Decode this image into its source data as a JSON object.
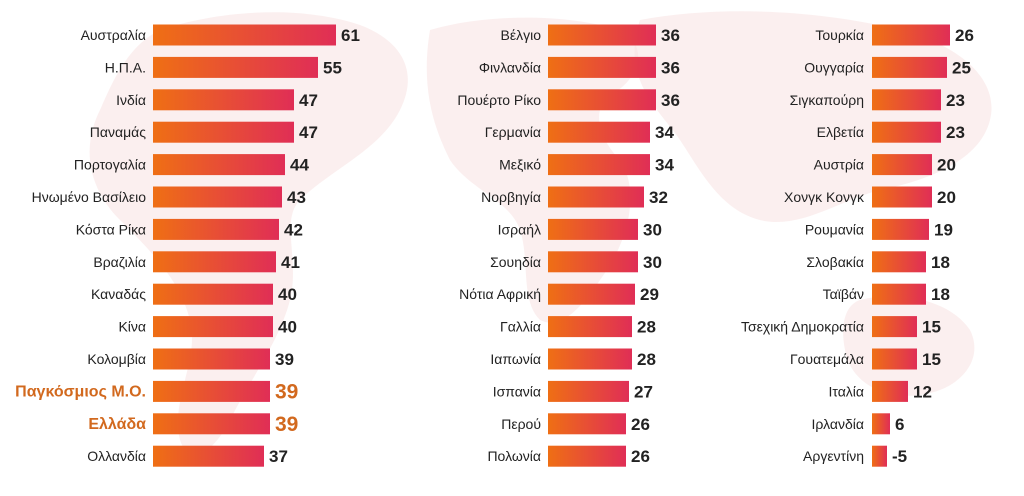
{
  "chart_data": {
    "type": "bar",
    "orientation": "horizontal",
    "panels": 3,
    "colors": {
      "bar_start": "#ef6f14",
      "bar_end": "#e02e56",
      "highlight_text": "#d2691e",
      "map": "#f5dada"
    },
    "categories": [
      "Αυστραλία",
      "Η.Π.Α.",
      "Ινδία",
      "Παναμάς",
      "Πορτογαλία",
      "Ηνωμένο Βασίλειο",
      "Κόστα Ρίκα",
      "Βραζιλία",
      "Καναδάς",
      "Κίνα",
      "Κολομβία",
      "Παγκόσμιος Μ.Ο.",
      "Ελλάδα",
      "Ολλανδία",
      "Βέλγιο",
      "Φινλανδία",
      "Πουέρτο Ρίκο",
      "Γερμανία",
      "Μεξικό",
      "Νορβηγία",
      "Ισραήλ",
      "Σουηδία",
      "Νότια Αφρική",
      "Γαλλία",
      "Ιαπωνία",
      "Ισπανία",
      "Περού",
      "Πολωνία",
      "Τουρκία",
      "Ουγγαρία",
      "Σιγκαπούρη",
      "Ελβετία",
      "Αυστρία",
      "Χονγκ Κονγκ",
      "Ρουμανία",
      "Σλοβακία",
      "Ταϊβάν",
      "Τσεχική Δημοκρατία",
      "Γουατεμάλα",
      "Ιταλία",
      "Ιρλανδία",
      "Αργεντίνη"
    ],
    "values": [
      61,
      55,
      47,
      47,
      44,
      43,
      42,
      41,
      40,
      40,
      39,
      39,
      39,
      37,
      36,
      36,
      36,
      34,
      34,
      32,
      30,
      30,
      29,
      28,
      28,
      27,
      26,
      26,
      26,
      25,
      23,
      23,
      20,
      20,
      19,
      18,
      18,
      15,
      15,
      12,
      6,
      -5
    ],
    "highlighted": [
      "Παγκόσμιος Μ.Ο.",
      "Ελλάδα"
    ]
  }
}
